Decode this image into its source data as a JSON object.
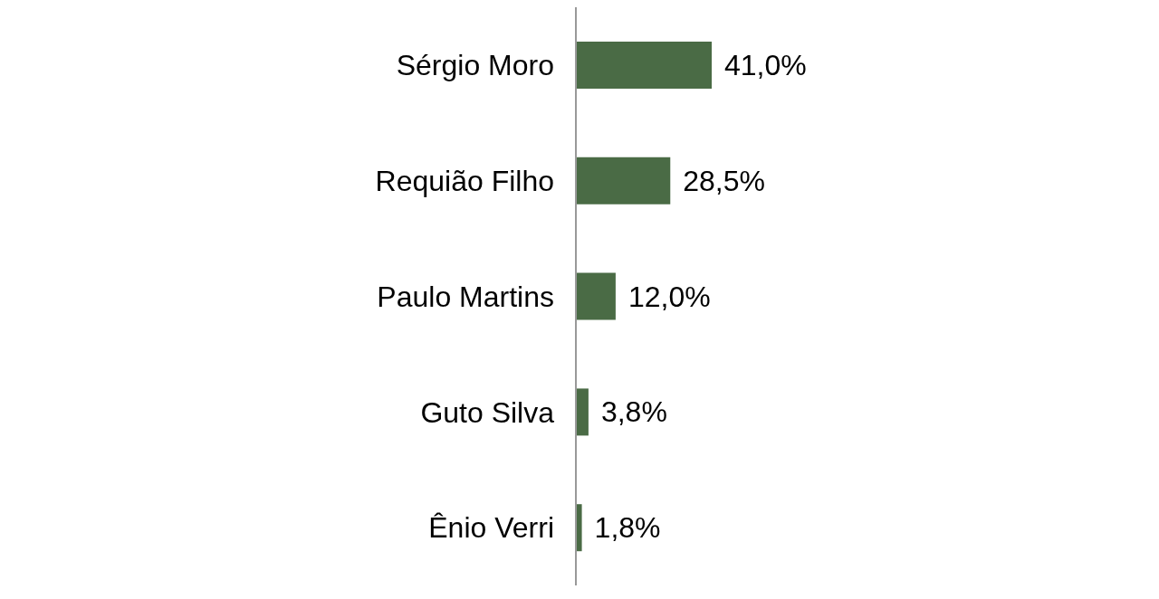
{
  "chart_data": {
    "type": "bar",
    "orientation": "horizontal",
    "categories": [
      "Sérgio Moro",
      "Requião Filho",
      "Paulo Martins",
      "Guto Silva",
      "Ênio Verri"
    ],
    "values": [
      41.0,
      28.5,
      12.0,
      3.8,
      1.8
    ],
    "value_labels": [
      "41,0%",
      "28,5%",
      "12,0%",
      "3,8%",
      "1,8%"
    ],
    "color": "#4a6b45"
  }
}
